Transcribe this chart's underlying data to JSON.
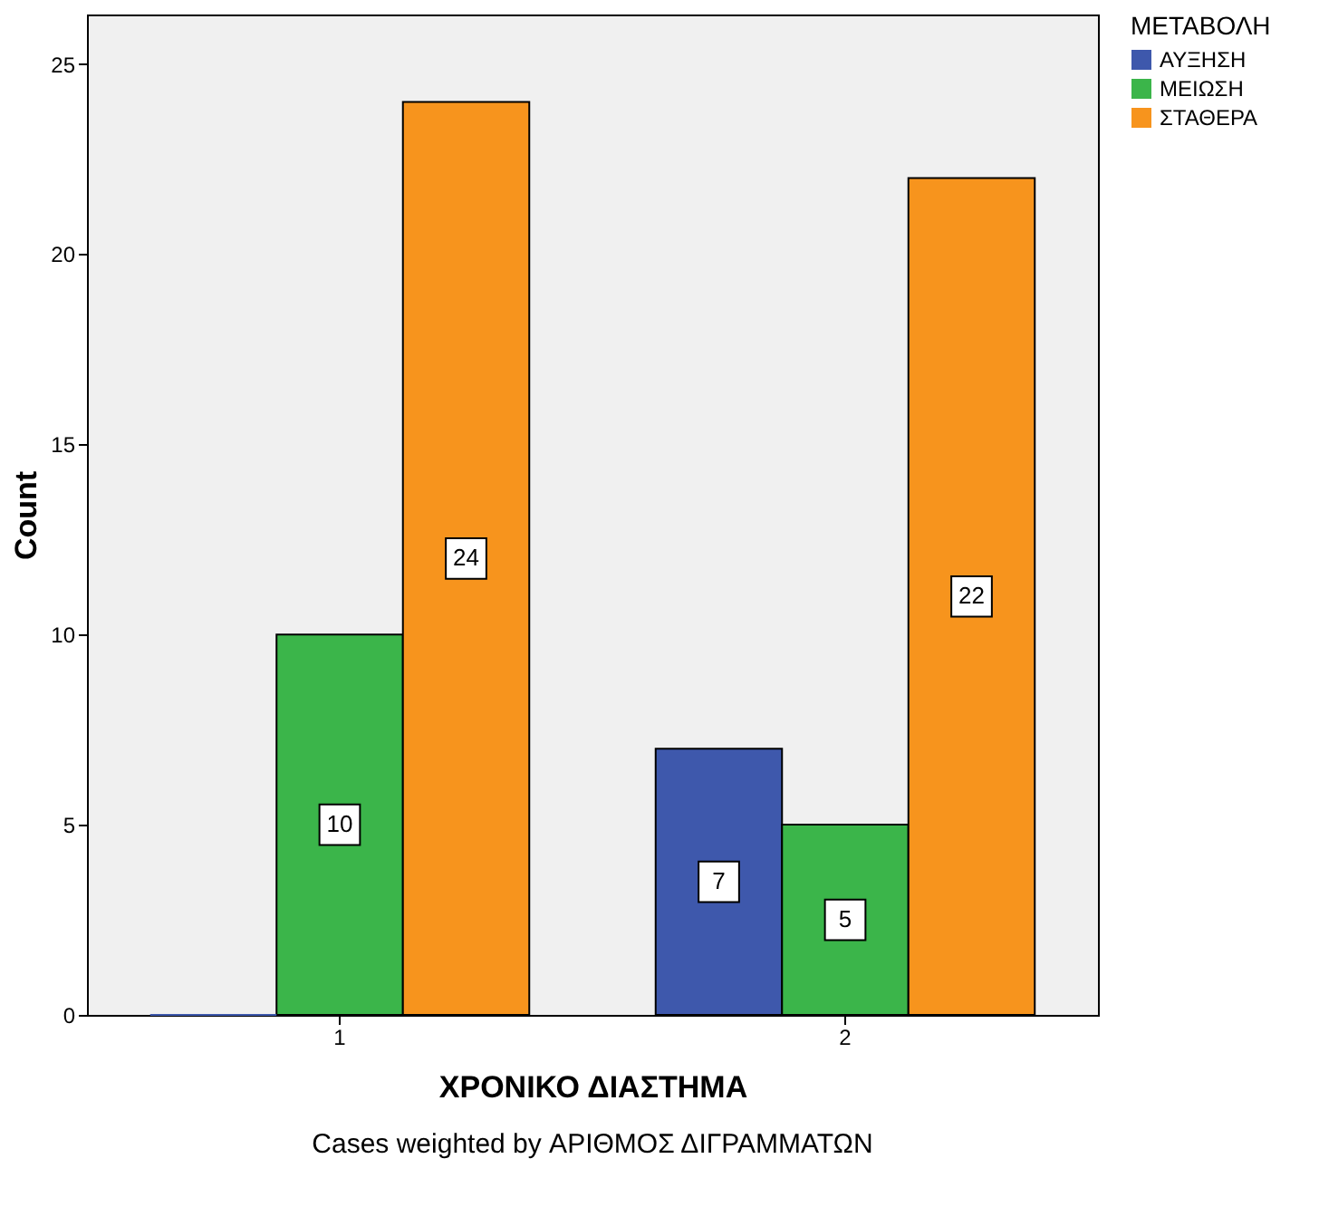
{
  "chart_data": {
    "type": "bar",
    "categories": [
      "1",
      "2"
    ],
    "series": [
      {
        "name": "ΑΥΞΗΣΗ",
        "color": "#3e58ac",
        "values": [
          0,
          7
        ],
        "value_labels": [
          null,
          "7"
        ]
      },
      {
        "name": "ΜΕΙΩΣΗ",
        "color": "#3bb54a",
        "values": [
          10,
          5
        ],
        "value_labels": [
          "10",
          "5"
        ]
      },
      {
        "name": "ΣΤΑΘΕΡΑ",
        "color": "#f7941d",
        "values": [
          24,
          22
        ],
        "value_labels": [
          "24",
          "22"
        ]
      }
    ],
    "xlabel": "ΧΡΟΝΙΚΟ ΔΙΑΣΤΗΜΑ",
    "ylabel": "Count",
    "legend_title": "ΜΕΤΑΒΟΛΗ",
    "legend": "top right",
    "ylim": [
      0,
      26.3
    ],
    "yticks": [
      0,
      5,
      10,
      15,
      20,
      25
    ],
    "grid": false,
    "annotations": [
      "Cases weighted by ΑΡΙΘΜΟΣ ΔΙΓΡΑΜΜΑΤΩΝ"
    ]
  }
}
